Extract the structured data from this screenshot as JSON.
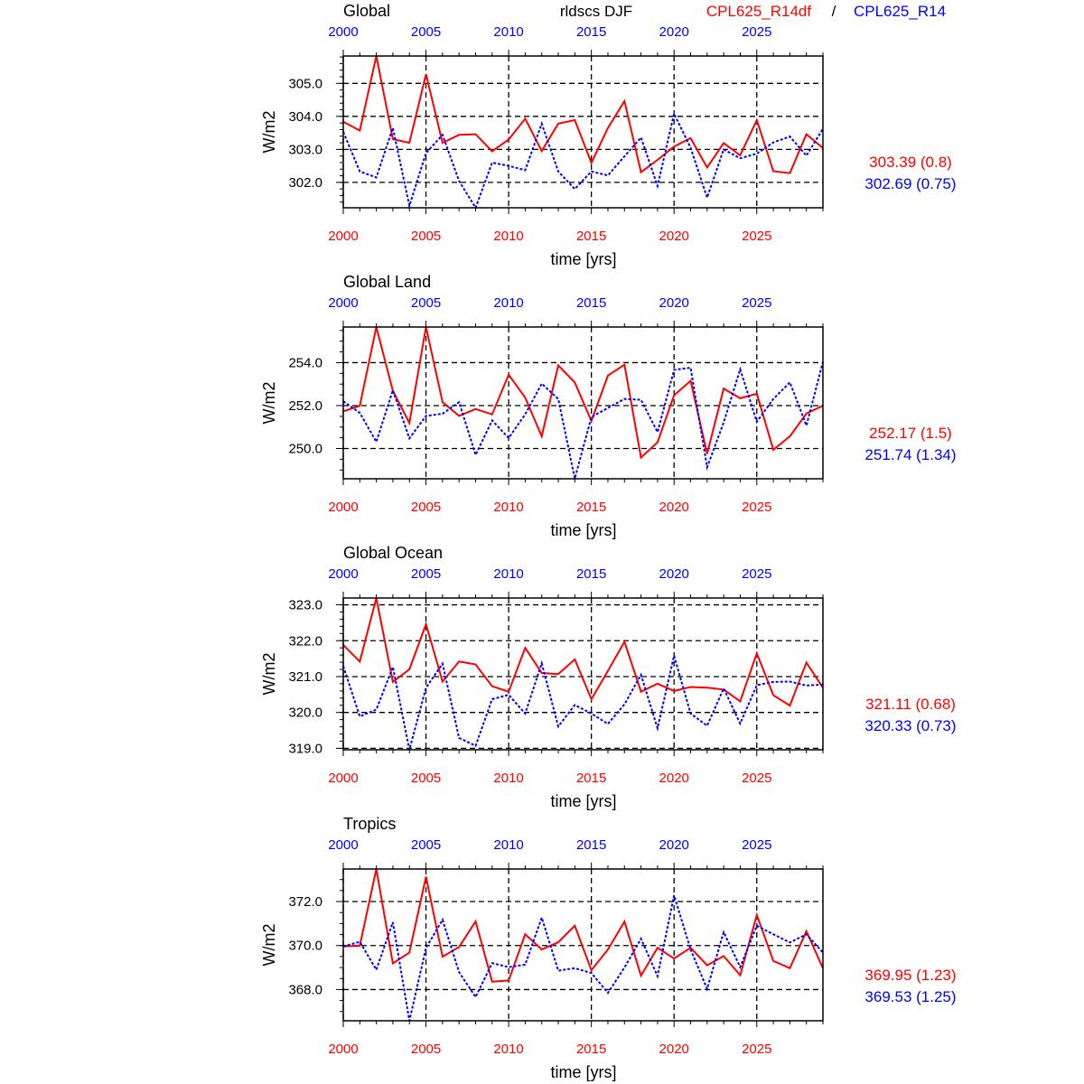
{
  "chart_data": {
    "type": "line",
    "title": "rldscs DJF",
    "legend": [
      {
        "name": "CPL625_R14df",
        "color": "#ff0000",
        "style": "solid"
      },
      {
        "name": "CPL625_R14",
        "color": "#0000ff",
        "style": "dashed"
      }
    ],
    "legend_separator": "/",
    "legend_placement": "top-right",
    "xlabel": "time [yrs]",
    "ylabel": "W/m2",
    "x": [
      2000,
      2001,
      2002,
      2003,
      2004,
      2005,
      2006,
      2007,
      2008,
      2009,
      2010,
      2011,
      2012,
      2013,
      2014,
      2015,
      2016,
      2017,
      2018,
      2019,
      2020,
      2021,
      2022,
      2023,
      2024,
      2025,
      2026,
      2027,
      2028,
      2029
    ],
    "xticks": [
      "2000",
      "2005",
      "2010",
      "2015",
      "2020",
      "2025"
    ],
    "xlim": [
      2000,
      2029
    ],
    "grid": true,
    "panels": [
      {
        "title": "Global",
        "ylim": [
          301.23,
          305.83
        ],
        "yticks": [
          "302.0",
          "303.0",
          "304.0",
          "305.0"
        ],
        "minor_step": 0.2,
        "stats": [
          "303.39 (0.8)",
          "302.69 (0.75)"
        ],
        "series": [
          {
            "name": "CPL625_R14df",
            "values": [
              303.84,
              303.57,
              305.83,
              303.31,
              303.2,
              305.28,
              303.2,
              303.44,
              303.46,
              302.94,
              303.3,
              303.93,
              302.95,
              303.78,
              303.89,
              302.59,
              303.65,
              304.46,
              302.31,
              302.68,
              303.08,
              303.34,
              302.45,
              303.19,
              302.82,
              303.89,
              302.34,
              302.28,
              303.46,
              303.04
            ]
          },
          {
            "name": "CPL625_R14",
            "values": [
              303.53,
              302.33,
              302.15,
              303.65,
              301.29,
              302.89,
              303.44,
              302.04,
              301.23,
              302.6,
              302.5,
              302.37,
              303.78,
              302.33,
              301.8,
              302.33,
              302.21,
              302.79,
              303.36,
              301.89,
              304.08,
              303.05,
              301.54,
              303.0,
              302.73,
              302.87,
              303.21,
              303.39,
              302.81,
              303.62
            ]
          }
        ]
      },
      {
        "title": "Global Land",
        "ylim": [
          248.59,
          255.66
        ],
        "yticks": [
          "250.0",
          "252.0",
          "254.0"
        ],
        "minor_step": 0.5,
        "stats": [
          "252.17 (1.5)",
          "251.74 (1.34)"
        ],
        "series": [
          {
            "name": "CPL625_R14df",
            "values": [
              251.73,
              251.99,
              255.66,
              252.69,
              251.19,
              255.66,
              252.16,
              251.52,
              251.84,
              251.59,
              253.44,
              252.37,
              250.57,
              253.87,
              253.08,
              251.28,
              253.4,
              253.9,
              249.58,
              250.29,
              252.48,
              253.15,
              249.75,
              252.79,
              252.34,
              252.55,
              249.94,
              250.57,
              251.63,
              252.0
            ]
          },
          {
            "name": "CPL625_R14",
            "values": [
              252.2,
              251.66,
              250.31,
              252.72,
              250.47,
              251.52,
              251.62,
              252.16,
              249.7,
              251.31,
              250.49,
              251.59,
              253.02,
              252.31,
              248.6,
              251.47,
              251.89,
              252.31,
              252.27,
              250.76,
              253.66,
              253.76,
              249.13,
              251.21,
              253.69,
              251.24,
              252.31,
              253.08,
              251.07,
              254.04
            ]
          }
        ]
      },
      {
        "title": "Global Ocean",
        "ylim": [
          318.96,
          323.19
        ],
        "yticks": [
          "319.0",
          "320.0",
          "321.0",
          "322.0",
          "323.0"
        ],
        "minor_step": 0.2,
        "stats": [
          "321.11 (0.68)",
          "320.33 (0.73)"
        ],
        "series": [
          {
            "name": "CPL625_R14df",
            "values": [
              321.88,
              321.42,
              323.19,
              320.85,
              321.2,
              322.46,
              320.86,
              321.42,
              321.34,
              320.73,
              320.58,
              321.8,
              321.1,
              321.07,
              321.48,
              320.37,
              321.16,
              321.97,
              320.58,
              320.8,
              320.6,
              320.71,
              320.69,
              320.64,
              320.31,
              321.65,
              320.48,
              320.19,
              321.39,
              320.69
            ]
          },
          {
            "name": "CPL625_R14",
            "values": [
              321.29,
              319.89,
              320.08,
              321.27,
              318.96,
              320.69,
              321.36,
              319.29,
              319.07,
              320.37,
              320.49,
              319.97,
              321.37,
              319.61,
              320.21,
              319.97,
              319.68,
              320.23,
              321.05,
              319.56,
              321.58,
              319.97,
              319.63,
              320.67,
              319.69,
              320.76,
              320.85,
              320.86,
              320.75,
              320.78
            ]
          }
        ]
      },
      {
        "title": "Tropics",
        "ylim": [
          366.58,
          373.48
        ],
        "yticks": [
          "368.0",
          "370.0",
          "372.0"
        ],
        "minor_step": 0.5,
        "stats": [
          "369.95 (1.23)",
          "369.53 (1.25)"
        ],
        "series": [
          {
            "name": "CPL625_R14df",
            "values": [
              369.96,
              369.99,
              373.48,
              369.19,
              369.68,
              373.13,
              369.49,
              369.93,
              371.1,
              368.36,
              368.41,
              370.51,
              369.82,
              370.15,
              370.9,
              368.88,
              369.82,
              371.09,
              368.63,
              369.9,
              369.41,
              369.9,
              369.1,
              369.52,
              368.65,
              371.39,
              369.3,
              368.97,
              370.65,
              368.97
            ]
          },
          {
            "name": "CPL625_R14",
            "values": [
              369.96,
              370.17,
              368.9,
              371.06,
              366.58,
              369.89,
              371.17,
              368.79,
              367.66,
              369.2,
              369.02,
              369.13,
              371.27,
              368.86,
              368.97,
              368.75,
              367.85,
              369.0,
              370.31,
              368.61,
              372.28,
              369.82,
              368.03,
              370.61,
              369.02,
              370.9,
              370.51,
              370.14,
              370.51,
              369.68
            ]
          }
        ]
      }
    ],
    "colors": {
      "series1": "#ff0000",
      "series2": "#0000ff"
    }
  }
}
